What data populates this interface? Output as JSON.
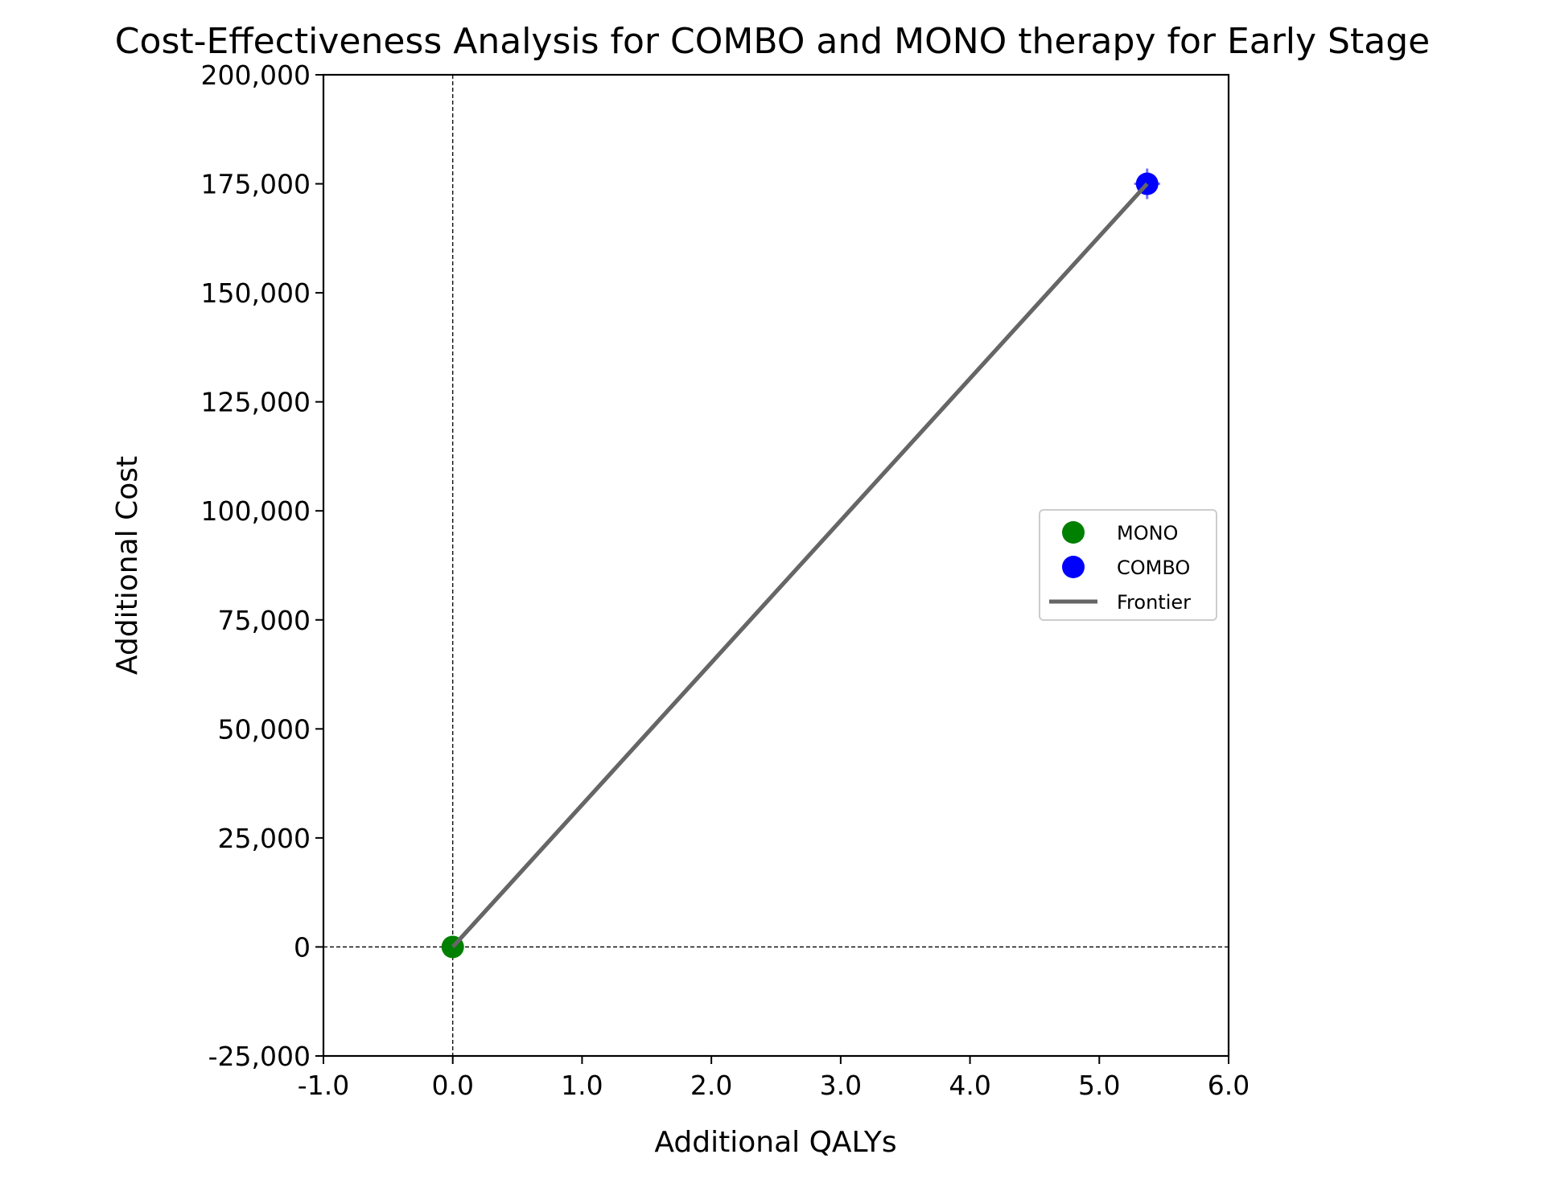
{
  "chart_data": {
    "type": "scatter",
    "title": "Cost-Effectiveness Analysis for COMBO and MONO therapy for Early Stage",
    "xlabel": "Additional QALYs",
    "ylabel": "Additional Cost",
    "xlim": [
      -1.0,
      6.0
    ],
    "ylim": [
      -25000,
      200000
    ],
    "x_ticks": [
      -1.0,
      0.0,
      1.0,
      2.0,
      3.0,
      4.0,
      5.0,
      6.0
    ],
    "x_tick_labels": [
      "-1.0",
      "0.0",
      "1.0",
      "2.0",
      "3.0",
      "4.0",
      "5.0",
      "6.0"
    ],
    "y_ticks": [
      -25000,
      0,
      25000,
      50000,
      75000,
      100000,
      125000,
      150000,
      175000,
      200000
    ],
    "y_tick_labels": [
      "-25,000",
      "0",
      "25,000",
      "50,000",
      "75,000",
      "100,000",
      "125,000",
      "150,000",
      "175,000",
      "200,000"
    ],
    "grid": false,
    "reference_lines": {
      "x": 0,
      "y": 0,
      "style": "dashed"
    },
    "legend_position": "center-right",
    "series": [
      {
        "name": "MONO",
        "kind": "point",
        "color": "#008000",
        "x": [
          0.0
        ],
        "y": [
          0
        ]
      },
      {
        "name": "COMBO",
        "kind": "point",
        "color": "#0000ff",
        "x": [
          5.37
        ],
        "y": [
          175000
        ],
        "error_x": 0.1,
        "error_y": 3500
      },
      {
        "name": "Frontier",
        "kind": "line",
        "color": "#666666",
        "x": [
          0.0,
          5.37
        ],
        "y": [
          0,
          175000
        ]
      }
    ]
  }
}
